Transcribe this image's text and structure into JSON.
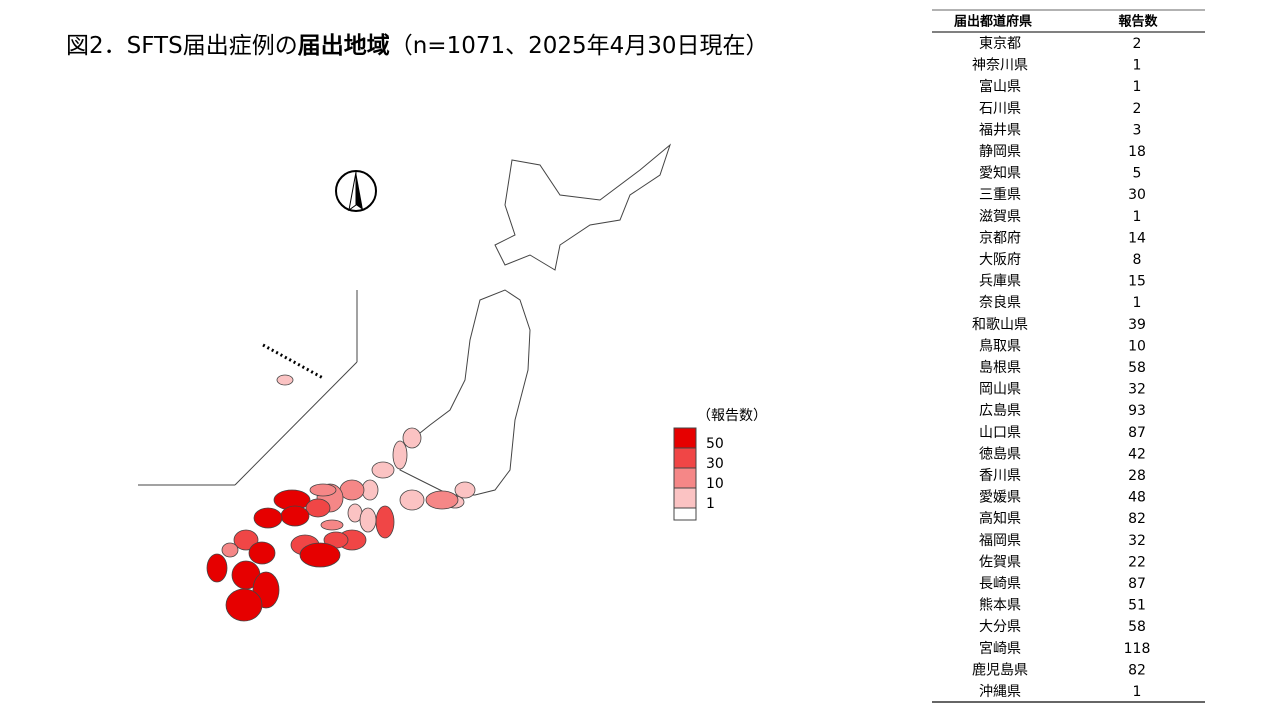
{
  "title": {
    "prefix": "図2．SFTS届出症例の",
    "bold": "届出地域",
    "suffix": "（n=1071、2025年4月30日現在）"
  },
  "legend": {
    "title": "（報告数）",
    "thresholds": [
      50,
      30,
      10,
      1
    ],
    "colors": [
      "#e60000",
      "#f04646",
      "#f58787",
      "#fbc3c3"
    ]
  },
  "table": {
    "headers": [
      "届出都道府県",
      "報告数"
    ],
    "rows": [
      [
        "東京都",
        2
      ],
      [
        "神奈川県",
        1
      ],
      [
        "富山県",
        1
      ],
      [
        "石川県",
        2
      ],
      [
        "福井県",
        3
      ],
      [
        "静岡県",
        18
      ],
      [
        "愛知県",
        5
      ],
      [
        "三重県",
        30
      ],
      [
        "滋賀県",
        1
      ],
      [
        "京都府",
        14
      ],
      [
        "大阪府",
        8
      ],
      [
        "兵庫県",
        15
      ],
      [
        "奈良県",
        1
      ],
      [
        "和歌山県",
        39
      ],
      [
        "鳥取県",
        10
      ],
      [
        "島根県",
        58
      ],
      [
        "岡山県",
        32
      ],
      [
        "広島県",
        93
      ],
      [
        "山口県",
        87
      ],
      [
        "徳島県",
        42
      ],
      [
        "香川県",
        28
      ],
      [
        "愛媛県",
        48
      ],
      [
        "高知県",
        82
      ],
      [
        "福岡県",
        32
      ],
      [
        "佐賀県",
        22
      ],
      [
        "長崎県",
        87
      ],
      [
        "熊本県",
        51
      ],
      [
        "大分県",
        58
      ],
      [
        "宮崎県",
        118
      ],
      [
        "鹿児島県",
        82
      ],
      [
        "沖縄県",
        1
      ]
    ]
  }
}
